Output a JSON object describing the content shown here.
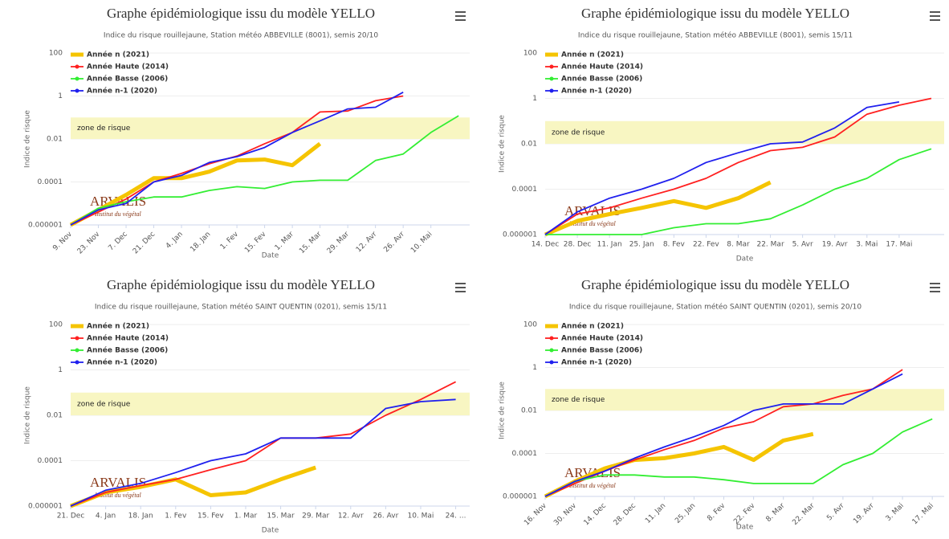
{
  "chart_data": [
    {
      "type": "line",
      "title": "Graphe épidémiologique issu du modèle YELLO",
      "subtitle": "Indice du risque rouillejaune, Station météo ABBEVILLE (8001), semis 20/10",
      "x_label": "Date",
      "y_label": "Indice de risque",
      "log_scale": true,
      "grid": true,
      "legend": "top-left",
      "x_labels_rotated": true,
      "ylim": [
        1e-06,
        100
      ],
      "yticks": [
        1e-06,
        0.0001,
        0.01,
        1,
        100
      ],
      "risk_zone": {
        "label": "zone de risque",
        "from": 0.01,
        "to": 0.1
      },
      "logo": {
        "name": "ARVALIS",
        "tagline": "Institut du végétal"
      },
      "categories": [
        "9. Nov",
        "23. Nov",
        "7. Dec",
        "21. Dec",
        "4. Jan",
        "18. Jan",
        "1. Fev",
        "15. Fev",
        "1. Mar",
        "15. Mar",
        "29. Mar",
        "12. Avr",
        "26. Avr",
        "10. Mai",
        null
      ],
      "series": [
        {
          "name": "Année n (2021)",
          "color": "#f5c400",
          "values": [
            1e-06,
            5e-06,
            2.5e-05,
            0.00015,
            0.00015,
            0.0003,
            0.001,
            0.0011,
            0.0006,
            0.006,
            null,
            null,
            null,
            null,
            null
          ]
        },
        {
          "name": "Année Haute (2014)",
          "color": "#ff2020",
          "values": [
            1e-06,
            4e-06,
            1.6e-05,
            0.0001,
            0.00025,
            0.0007,
            0.0016,
            0.006,
            0.02,
            0.18,
            0.2,
            0.6,
            1,
            null,
            null
          ]
        },
        {
          "name": "Année Basse (2006)",
          "color": "#33ee33",
          "values": [
            1e-06,
            6e-06,
            1.2e-05,
            2e-05,
            2e-05,
            4e-05,
            6e-05,
            5e-05,
            0.0001,
            0.00012,
            0.00012,
            0.001,
            0.002,
            0.02,
            0.12
          ]
        },
        {
          "name": "Année n-1 (2020)",
          "color": "#2020ee",
          "values": [
            1e-06,
            5e-06,
            1e-05,
            0.0001,
            0.0002,
            0.0008,
            0.0015,
            0.004,
            0.02,
            0.07,
            0.25,
            0.3,
            1.5,
            null,
            null
          ]
        }
      ]
    },
    {
      "type": "line",
      "title": "Graphe épidémiologique issu du modèle YELLO",
      "subtitle": "Indice du risque rouillejaune, Station météo ABBEVILLE (8001), semis 15/11",
      "x_label": "Date",
      "y_label": "Indice de risque",
      "log_scale": true,
      "grid": true,
      "legend": "top-left",
      "x_labels_rotated": false,
      "ylim": [
        1e-06,
        100
      ],
      "yticks": [
        1e-06,
        0.0001,
        0.01,
        1,
        100
      ],
      "risk_zone": {
        "label": "zone de risque",
        "from": 0.01,
        "to": 0.1
      },
      "logo": {
        "name": "ARVALIS",
        "tagline": "Institut du végétal"
      },
      "categories": [
        "14. Dec",
        "28. Dec",
        "11. Jan",
        "25. Jan",
        "8. Fev",
        "22. Fev",
        "8. Mar",
        "22. Mar",
        "5. Avr",
        "19. Avr",
        "3. Mai",
        "17. Mai",
        null
      ],
      "series": [
        {
          "name": "Année n (2021)",
          "color": "#f5c400",
          "values": [
            1e-06,
            4e-06,
            8e-06,
            1.5e-05,
            3e-05,
            1.5e-05,
            4e-05,
            0.0002,
            null,
            null,
            null,
            null,
            null
          ]
        },
        {
          "name": "Année Haute (2014)",
          "color": "#ff2020",
          "values": [
            1e-06,
            8e-06,
            1.5e-05,
            4e-05,
            0.0001,
            0.0003,
            0.0015,
            0.005,
            0.007,
            0.02,
            0.2,
            0.5,
            1
          ]
        },
        {
          "name": "Année Basse (2006)",
          "color": "#33ee33",
          "values": [
            1e-06,
            1e-06,
            1e-06,
            1e-06,
            2e-06,
            3e-06,
            3e-06,
            5e-06,
            2e-05,
            0.0001,
            0.0003,
            0.002,
            0.006
          ]
        },
        {
          "name": "Année n-1 (2020)",
          "color": "#2020ee",
          "values": [
            1e-06,
            1e-05,
            4e-05,
            0.0001,
            0.0003,
            0.0015,
            0.004,
            0.01,
            0.012,
            0.05,
            0.4,
            0.7,
            null
          ]
        }
      ]
    },
    {
      "type": "line",
      "title": "Graphe épidémiologique issu du modèle YELLO",
      "subtitle": "Indice du risque rouillejaune, Station météo SAINT QUENTIN (0201), semis 15/11",
      "x_label": "Date",
      "y_label": "Indice de risque",
      "log_scale": true,
      "grid": true,
      "legend": "top-left",
      "x_labels_rotated": false,
      "ylim": [
        1e-06,
        100
      ],
      "yticks": [
        1e-06,
        0.0001,
        0.01,
        1,
        100
      ],
      "risk_zone": {
        "label": "zone de risque",
        "from": 0.01,
        "to": 0.1
      },
      "logo": {
        "name": "ARVALIS",
        "tagline": "Institut du végétal"
      },
      "categories": [
        "21. Dec",
        "4. Jan",
        "18. Jan",
        "1. Fev",
        "15. Fev",
        "1. Mar",
        "15. Mar",
        "29. Mar",
        "12. Avr",
        "26. Avr",
        "10. Mai",
        "24. ..."
      ],
      "series": [
        {
          "name": "Année n (2021)",
          "color": "#f5c400",
          "values": [
            1e-06,
            4e-06,
            7e-06,
            1.5e-05,
            3e-06,
            4e-06,
            1.5e-05,
            5e-05,
            null,
            null,
            null,
            null
          ]
        },
        {
          "name": "Année Haute (2014)",
          "color": "#ff2020",
          "values": [
            1e-06,
            4e-06,
            8e-06,
            1.5e-05,
            4e-05,
            0.0001,
            0.001,
            0.001,
            0.0015,
            0.01,
            0.05,
            0.3
          ]
        },
        {
          "name": "Année Basse (2006)",
          "color": "#33ee33",
          "values": [
            null,
            null,
            null,
            null,
            null,
            null,
            null,
            null,
            null,
            null,
            null,
            null
          ]
        },
        {
          "name": "Année n-1 (2020)",
          "color": "#2020ee",
          "values": [
            1e-06,
            5e-06,
            1e-05,
            3e-05,
            0.0001,
            0.0002,
            0.001,
            0.001,
            0.001,
            0.02,
            0.04,
            0.05
          ]
        }
      ]
    },
    {
      "type": "line",
      "title": "Graphe épidémiologique issu du modèle YELLO",
      "subtitle": "Indice du risque rouillejaune, Station météo SAINT QUENTIN (0201), semis 20/10",
      "x_label": "Date",
      "y_label": "Indice de risque",
      "log_scale": true,
      "grid": true,
      "legend": "top-left",
      "x_labels_rotated": true,
      "ylim": [
        1e-06,
        100
      ],
      "yticks": [
        1e-06,
        0.0001,
        0.01,
        1,
        100
      ],
      "risk_zone": {
        "label": "zone de risque",
        "from": 0.01,
        "to": 0.1
      },
      "logo": {
        "name": "ARVALIS",
        "tagline": "Institut du végétal"
      },
      "categories": [
        "16. Nov",
        "30. Nov",
        "14. Dec",
        "28. Dec",
        "11. Jan",
        "25. Jan",
        "8. Fev",
        "22. Fev",
        "8. Mar",
        "22. Mar",
        "5. Avr",
        "19. Avr",
        "3. Mai",
        "17. Mai"
      ],
      "series": [
        {
          "name": "Année n (2021)",
          "color": "#f5c400",
          "values": [
            1e-06,
            5e-06,
            2e-05,
            5e-05,
            6e-05,
            0.0001,
            0.0002,
            5e-05,
            0.0004,
            0.0008,
            null,
            null,
            null,
            null
          ]
        },
        {
          "name": "Année Haute (2014)",
          "color": "#ff2020",
          "values": [
            1e-06,
            4e-06,
            1.5e-05,
            5e-05,
            0.00015,
            0.0004,
            0.0015,
            0.003,
            0.015,
            0.02,
            0.05,
            0.1,
            0.8,
            null
          ]
        },
        {
          "name": "Année Basse (2006)",
          "color": "#33ee33",
          "values": [
            1e-06,
            5e-06,
            1e-05,
            1e-05,
            8e-06,
            8e-06,
            6e-06,
            4e-06,
            4e-06,
            4e-06,
            3e-05,
            0.0001,
            0.001,
            0.004
          ]
        },
        {
          "name": "Année n-1 (2020)",
          "color": "#2020ee",
          "values": [
            1e-06,
            5e-06,
            1.5e-05,
            6e-05,
            0.0002,
            0.0006,
            0.002,
            0.01,
            0.02,
            0.02,
            0.02,
            0.1,
            0.5,
            null
          ]
        }
      ]
    }
  ]
}
